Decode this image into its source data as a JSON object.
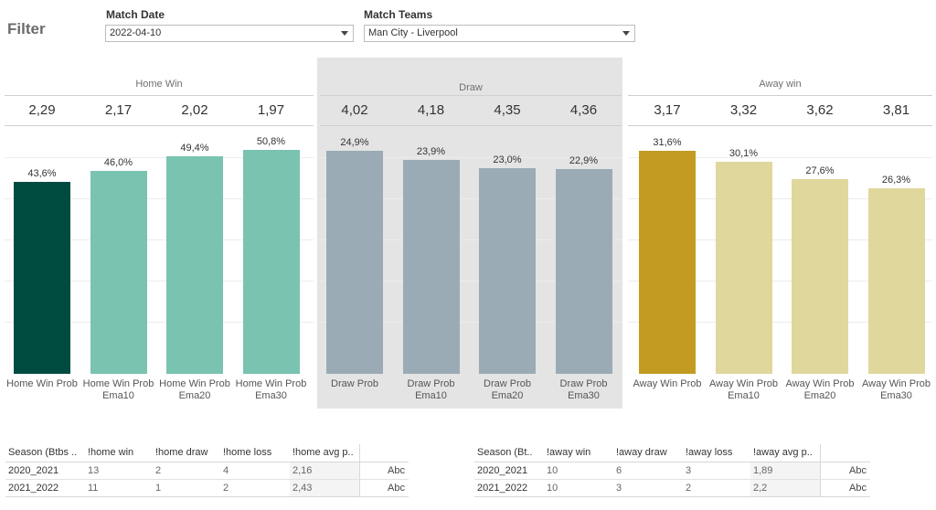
{
  "filter": {
    "title": "Filter",
    "match_date_label": "Match Date",
    "match_date_value": "2022-04-10",
    "match_teams_label": "Match Teams",
    "match_teams_value": "Man City - Liverpool"
  },
  "groups": [
    {
      "title": "Home Win",
      "odds": [
        "2,29",
        "2,17",
        "2,02",
        "1,97"
      ]
    },
    {
      "title": "Draw",
      "odds": [
        "4,02",
        "4,18",
        "4,35",
        "4,36"
      ]
    },
    {
      "title": "Away win",
      "odds": [
        "3,17",
        "3,32",
        "3,62",
        "3,81"
      ]
    }
  ],
  "chart_data": {
    "type": "bar",
    "categories": [
      [
        "Home Win Prob",
        ""
      ],
      [
        "Home Win Prob",
        "Ema10"
      ],
      [
        "Home Win Prob",
        "Ema20"
      ],
      [
        "Home Win Prob",
        "Ema30"
      ],
      [
        "Draw Prob",
        ""
      ],
      [
        "Draw Prob",
        "Ema10"
      ],
      [
        "Draw Prob",
        "Ema20"
      ],
      [
        "Draw Prob",
        "Ema30"
      ],
      [
        "Away Win Prob",
        ""
      ],
      [
        "Away Win Prob",
        "Ema10"
      ],
      [
        "Away Win Prob",
        "Ema20"
      ],
      [
        "Away Win Prob",
        "Ema30"
      ]
    ],
    "values": [
      43.6,
      46.0,
      49.4,
      50.8,
      24.9,
      23.9,
      23.0,
      22.9,
      31.6,
      30.1,
      27.6,
      26.3
    ],
    "value_labels": [
      "43,6%",
      "46,0%",
      "49,4%",
      "50,8%",
      "24,9%",
      "23,9%",
      "23,0%",
      "22,9%",
      "31,6%",
      "30,1%",
      "27,6%",
      "26,3%"
    ],
    "colors": [
      "#004b40",
      "#79c3b0",
      "#79c3b0",
      "#79c3b0",
      "#9aabb5",
      "#9aabb5",
      "#9aabb5",
      "#9aabb5",
      "#c39b23",
      "#e0d79d",
      "#e0d79d",
      "#e0d79d"
    ],
    "panel_ylim": [
      [
        0,
        56
      ],
      [
        0,
        27.6
      ],
      [
        0,
        35
      ]
    ],
    "grid": true,
    "legend": "none"
  },
  "home_table": {
    "headers": [
      "Season (Btbs ..",
      "!home win",
      "!home draw",
      "!home loss",
      "!home avg p..",
      ""
    ],
    "rows": [
      [
        "2020_2021",
        "13",
        "2",
        "4",
        "2,16",
        "Abc"
      ],
      [
        "2021_2022",
        "11",
        "1",
        "2",
        "2,43",
        "Abc"
      ]
    ]
  },
  "away_table": {
    "headers": [
      "Season (Bt..",
      "!away win",
      "!away draw",
      "!away loss",
      "!away avg p..",
      ""
    ],
    "rows": [
      [
        "2020_2021",
        "10",
        "6",
        "3",
        "1,89",
        "Abc"
      ],
      [
        "2021_2022",
        "10",
        "3",
        "2",
        "2,2",
        "Abc"
      ]
    ]
  }
}
